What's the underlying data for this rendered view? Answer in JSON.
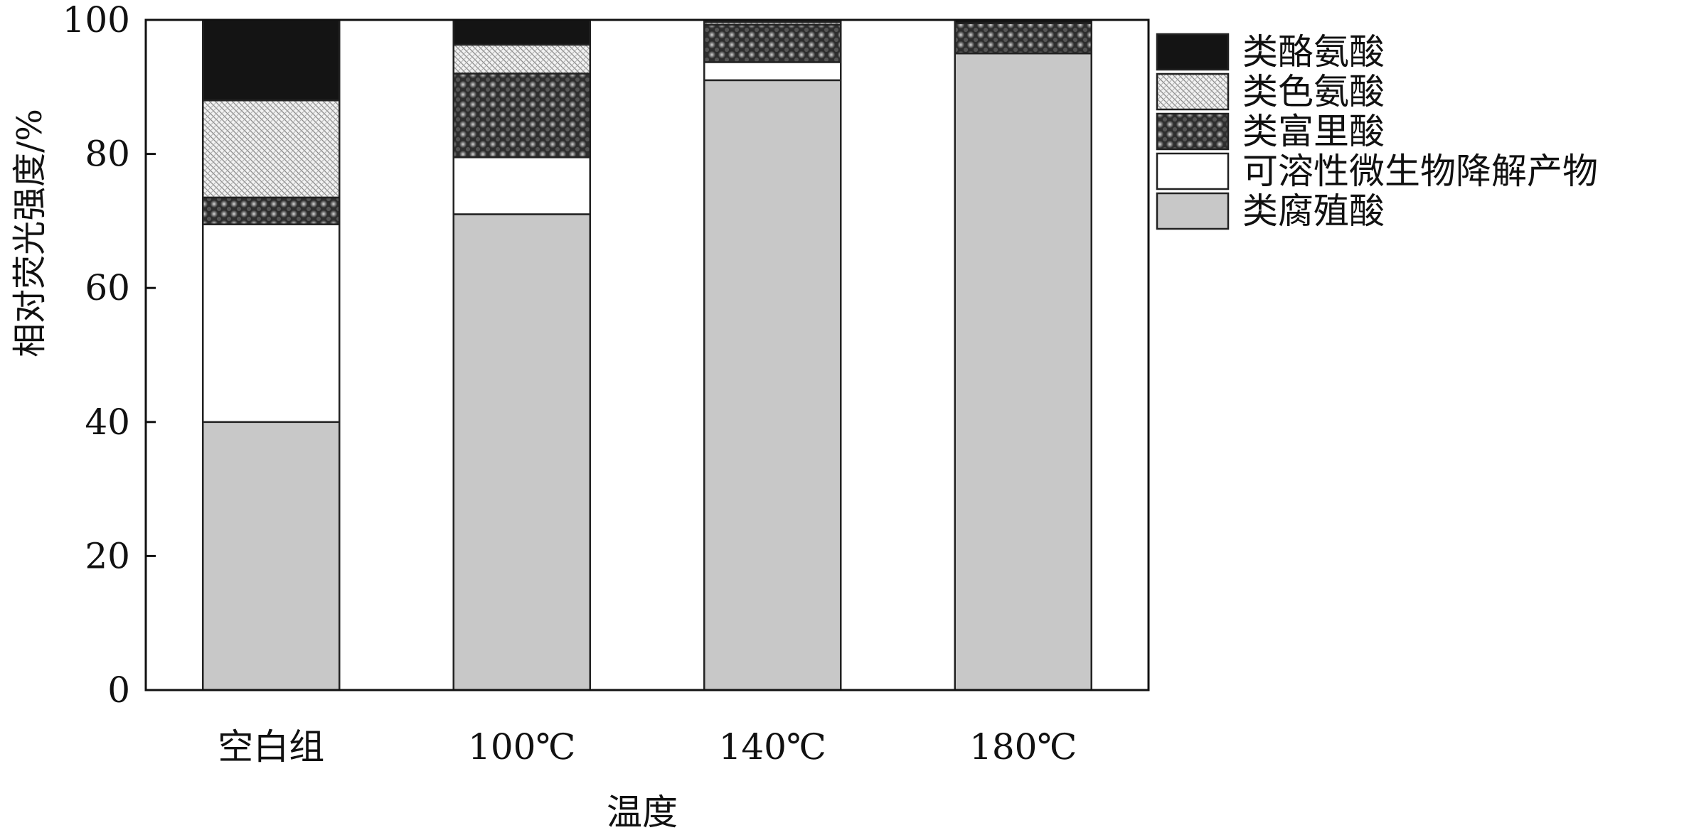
{
  "chart_data": {
    "type": "bar",
    "stacked": true,
    "xlabel": "温度",
    "ylabel": "相对荧光强度/%",
    "ylim": [
      0,
      100
    ],
    "yticks": [
      0,
      20,
      40,
      60,
      80,
      100
    ],
    "categories": [
      "空白组",
      "100℃",
      "140℃",
      "180℃"
    ],
    "legend_position": "right",
    "series": [
      {
        "name": "类腐殖酸",
        "values": [
          40,
          71,
          91,
          95
        ],
        "pattern": "solid-gray"
      },
      {
        "name": "可溶性微生物降解产物",
        "values": [
          29.5,
          8.5,
          2.7,
          0
        ],
        "pattern": "solid-white"
      },
      {
        "name": "类富里酸",
        "values": [
          4,
          12.5,
          5.6,
          4.5
        ],
        "pattern": "dark-dots"
      },
      {
        "name": "类色氨酸",
        "values": [
          14.5,
          4.3,
          0.4,
          0
        ],
        "pattern": "light-hatch"
      },
      {
        "name": "类酪氨酸",
        "values": [
          12,
          3.7,
          0.3,
          0.5
        ],
        "pattern": "solid-black"
      }
    ],
    "legend_order": [
      "类酪氨酸",
      "类色氨酸",
      "类富里酸",
      "可溶性微生物降解产物",
      "类腐殖酸"
    ]
  }
}
